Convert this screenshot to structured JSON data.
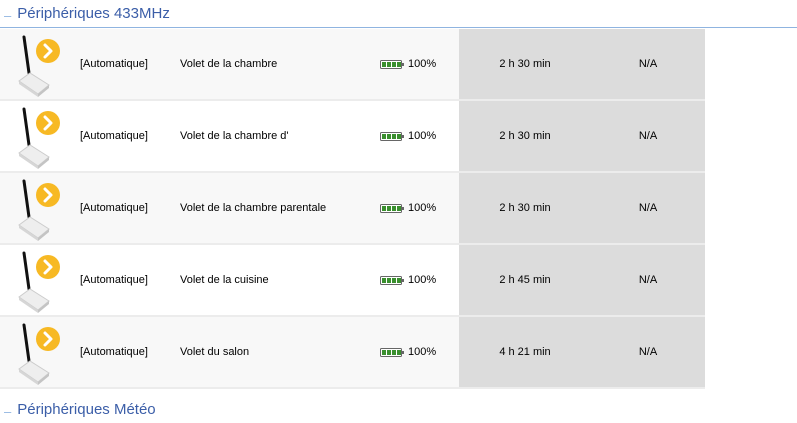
{
  "sections": {
    "rf433": "Périphériques 433MHz",
    "meteo": "Périphériques Météo",
    "collapse_glyph": "–"
  },
  "colors": {
    "accent": "#3b5ea8",
    "arrow": "#f7b924",
    "battery": "#3a8f2e",
    "cell_gray": "#dcdcdc"
  },
  "devices": [
    {
      "mode": "[Automatique]",
      "name": "Volet de la chambre",
      "battery": "100%",
      "battery_level": 100,
      "time": "2 h 30 min",
      "value": "N/A"
    },
    {
      "mode": "[Automatique]",
      "name": "Volet de la chambre d'",
      "battery": "100%",
      "battery_level": 100,
      "time": "2 h 30 min",
      "value": "N/A"
    },
    {
      "mode": "[Automatique]",
      "name": "Volet de la chambre parentale",
      "battery": "100%",
      "battery_level": 100,
      "time": "2 h 30 min",
      "value": "N/A"
    },
    {
      "mode": "[Automatique]",
      "name": "Volet de la cuisine",
      "battery": "100%",
      "battery_level": 100,
      "time": "2 h 45 min",
      "value": "N/A"
    },
    {
      "mode": "[Automatique]",
      "name": "Volet du salon",
      "battery": "100%",
      "battery_level": 100,
      "time": "4 h 21 min",
      "value": "N/A"
    }
  ]
}
